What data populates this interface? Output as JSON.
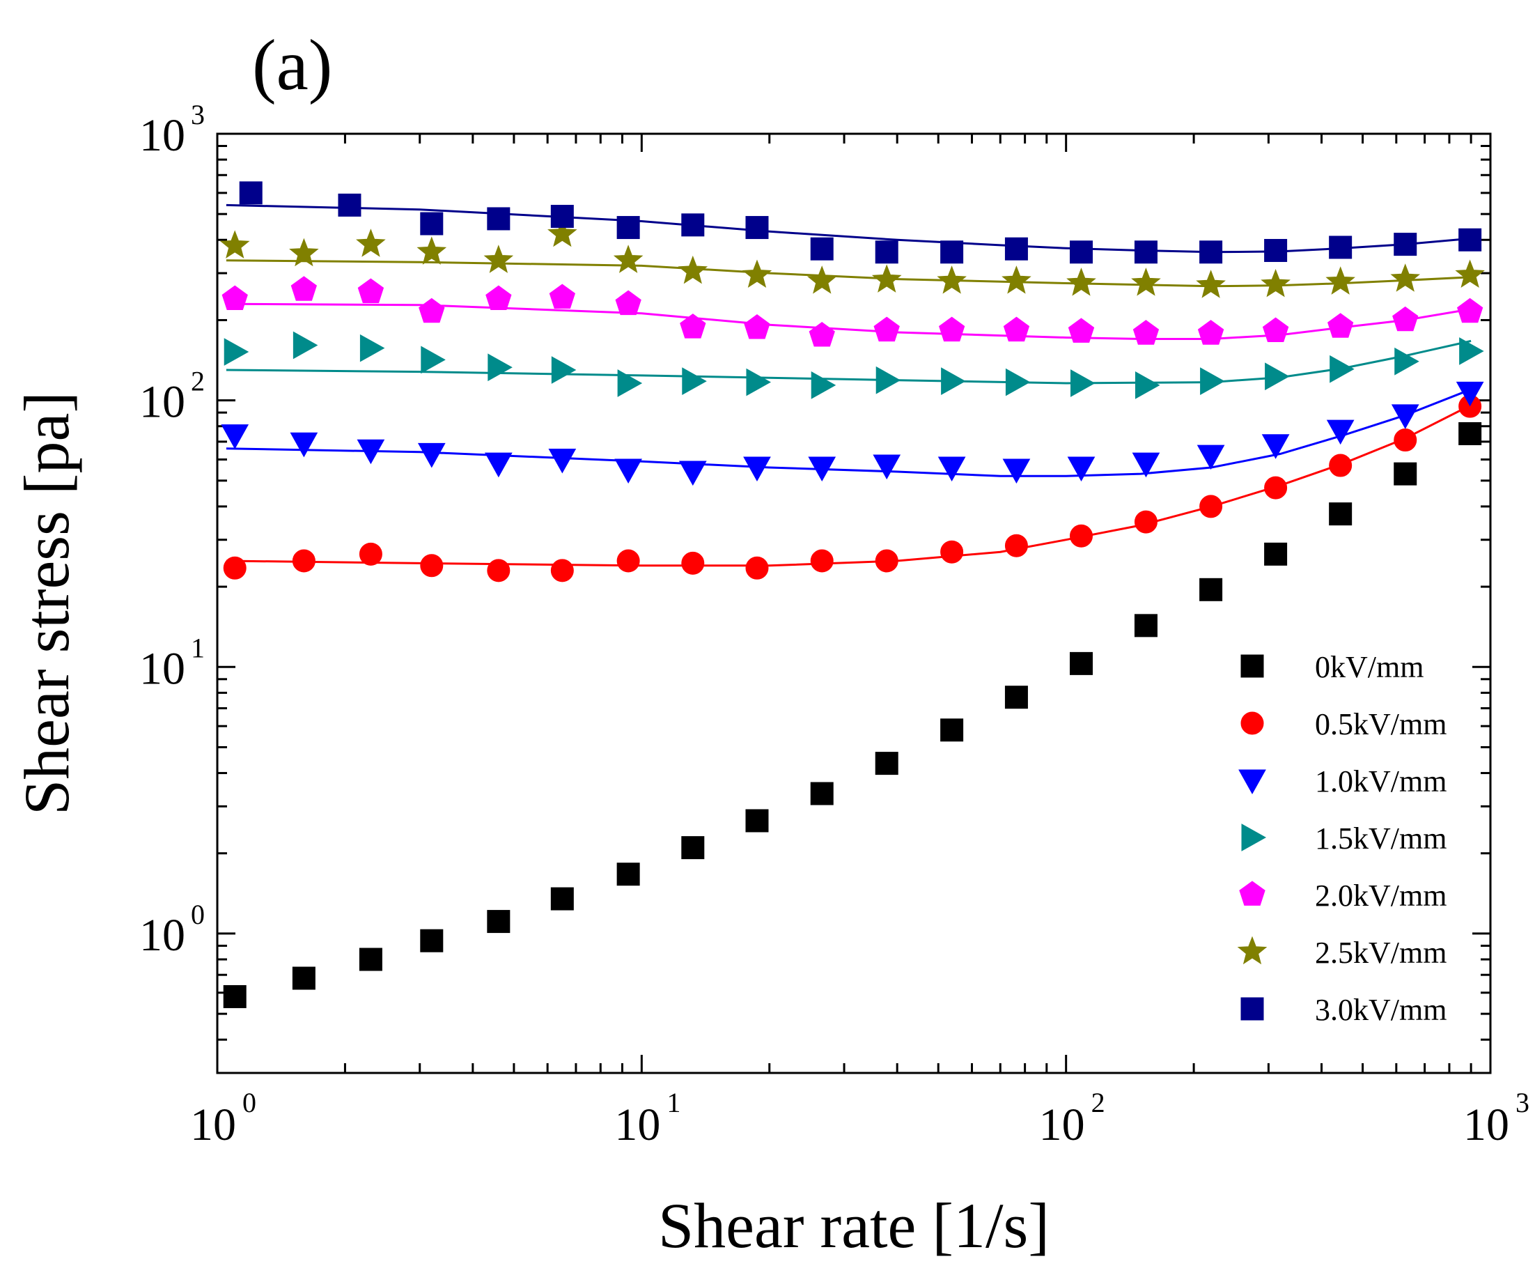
{
  "panel_label": "(a)",
  "colors": {
    "0kV/mm": "#000000",
    "0.5kV/mm": "#ff0000",
    "1.0kV/mm": "#0000ff",
    "1.5kV/mm": "#008b8b",
    "2.0kV/mm": "#ff00ff",
    "2.5kV/mm": "#808000",
    "3.0kV/mm": "#00008b"
  },
  "chart_data": {
    "type": "scatter",
    "xscale": "log",
    "yscale": "log",
    "xlabel": "Shear rate [1/s]",
    "ylabel": "Shear stress [pa]",
    "xlim": [
      1,
      1000
    ],
    "ylim": [
      0.3,
      1000
    ],
    "xticks": [
      {
        "value": 1,
        "base": "10",
        "exp": "0"
      },
      {
        "value": 10,
        "base": "10",
        "exp": "1"
      },
      {
        "value": 100,
        "base": "10",
        "exp": "2"
      },
      {
        "value": 1000,
        "base": "10",
        "exp": "3"
      }
    ],
    "yticks": [
      {
        "value": 1,
        "base": "10",
        "exp": "0"
      },
      {
        "value": 10,
        "base": "10",
        "exp": "1"
      },
      {
        "value": 100,
        "base": "10",
        "exp": "2"
      },
      {
        "value": 1000,
        "base": "10",
        "exp": "3"
      }
    ],
    "legend_position": "bottom-right",
    "series": [
      {
        "name": "0kV/mm",
        "marker": "square",
        "x": [
          1.1,
          1.6,
          2.3,
          3.2,
          4.6,
          6.5,
          9.3,
          13.2,
          18.7,
          26.6,
          37.8,
          53.8,
          76.4,
          108.6,
          154.3,
          219.4,
          311.8,
          443.2,
          630,
          895
        ],
        "y": [
          0.58,
          0.68,
          0.8,
          0.94,
          1.11,
          1.35,
          1.67,
          2.1,
          2.65,
          3.35,
          4.35,
          5.8,
          7.7,
          10.3,
          14.3,
          19.5,
          26.5,
          37.5,
          53,
          75
        ],
        "fit": null
      },
      {
        "name": "0.5kV/mm",
        "marker": "circle",
        "x": [
          1.1,
          1.6,
          2.3,
          3.2,
          4.6,
          6.5,
          9.3,
          13.2,
          18.7,
          26.6,
          37.8,
          53.8,
          76.4,
          108.6,
          154.3,
          219.4,
          311.8,
          443.2,
          630,
          895
        ],
        "y": [
          23.5,
          25,
          26.5,
          24,
          23,
          23,
          25,
          24.5,
          23.5,
          25,
          25,
          27,
          28.5,
          31,
          35,
          40,
          47,
          57,
          71,
          95
        ],
        "fit": {
          "x": [
            1.05,
            3,
            10,
            20,
            40,
            70,
            100,
            150,
            220,
            320,
            450,
            630,
            900
          ],
          "y": [
            25,
            24.5,
            24,
            24,
            25,
            27,
            30,
            34,
            40,
            48,
            58,
            72,
            96
          ]
        }
      },
      {
        "name": "1.0kV/mm",
        "marker": "triangle-down",
        "x": [
          1.1,
          1.6,
          2.3,
          3.2,
          4.6,
          6.5,
          9.3,
          13.2,
          18.7,
          26.6,
          37.8,
          53.8,
          76.4,
          108.6,
          154.3,
          219.4,
          311.8,
          443.2,
          630,
          895
        ],
        "y": [
          74,
          69,
          65,
          63,
          58,
          60,
          55,
          54,
          56,
          56,
          57,
          56,
          55,
          56,
          58,
          62,
          68,
          77,
          88,
          107
        ],
        "fit": {
          "x": [
            1.05,
            3,
            10,
            20,
            40,
            70,
            100,
            150,
            220,
            320,
            450,
            630,
            900
          ],
          "y": [
            66,
            64,
            59,
            56,
            54,
            52,
            52,
            53,
            56,
            63,
            74,
            88,
            110
          ]
        }
      },
      {
        "name": "1.5kV/mm",
        "marker": "triangle-right",
        "x": [
          1.1,
          1.6,
          2.3,
          3.2,
          4.6,
          6.5,
          9.3,
          13.2,
          18.7,
          26.6,
          37.8,
          53.8,
          76.4,
          108.6,
          154.3,
          219.4,
          311.8,
          443.2,
          630,
          895
        ],
        "y": [
          152,
          161,
          157,
          142,
          133,
          130,
          116,
          118,
          117,
          114,
          119,
          118,
          117,
          116,
          114,
          118,
          123,
          131,
          140,
          153
        ],
        "fit": {
          "x": [
            1.05,
            3,
            10,
            30,
            100,
            220,
            320,
            450,
            630,
            900
          ],
          "y": [
            130,
            128,
            124,
            120,
            116,
            117,
            122,
            132,
            147,
            167
          ]
        }
      },
      {
        "name": "2.0kV/mm",
        "marker": "pentagon",
        "x": [
          1.1,
          1.6,
          2.3,
          3.2,
          4.6,
          6.5,
          9.3,
          13.2,
          18.7,
          26.6,
          37.8,
          53.8,
          76.4,
          108.6,
          154.3,
          219.4,
          311.8,
          443.2,
          630,
          895
        ],
        "y": [
          240,
          260,
          255,
          215,
          240,
          243,
          230,
          188,
          187,
          175,
          183,
          183,
          183,
          181,
          178,
          178,
          182,
          189,
          200,
          215
        ],
        "fit": {
          "x": [
            1.05,
            3,
            10,
            20,
            40,
            70,
            100,
            150,
            220,
            320,
            450,
            630,
            900
          ],
          "y": [
            230,
            228,
            212,
            192,
            180,
            175,
            172,
            170,
            170,
            176,
            188,
            200,
            220
          ]
        }
      },
      {
        "name": "2.5kV/mm",
        "marker": "star",
        "x": [
          1.1,
          1.6,
          2.3,
          3.2,
          4.6,
          6.5,
          9.3,
          13.2,
          18.7,
          26.6,
          37.8,
          53.8,
          76.4,
          108.6,
          154.3,
          219.4,
          311.8,
          443.2,
          630,
          895
        ],
        "y": [
          380,
          355,
          385,
          360,
          335,
          420,
          335,
          305,
          295,
          280,
          283,
          280,
          280,
          275,
          275,
          270,
          272,
          278,
          285,
          295
        ],
        "fit": {
          "x": [
            1.05,
            3,
            10,
            20,
            40,
            100,
            220,
            320,
            450,
            630,
            900
          ],
          "y": [
            335,
            330,
            320,
            300,
            285,
            275,
            268,
            270,
            275,
            282,
            290
          ]
        }
      },
      {
        "name": "3.0kV/mm",
        "marker": "square",
        "x": [
          1.2,
          2.05,
          3.2,
          4.6,
          6.5,
          9.3,
          13.2,
          18.7,
          26.6,
          37.8,
          53.8,
          76.4,
          108.6,
          154.3,
          219.4,
          311.8,
          443.2,
          630,
          895
        ],
        "y": [
          600,
          540,
          460,
          480,
          490,
          445,
          455,
          445,
          370,
          360,
          360,
          370,
          360,
          360,
          360,
          365,
          375,
          385,
          400
        ],
        "fit": {
          "x": [
            1.05,
            3,
            10,
            20,
            40,
            70,
            100,
            150,
            220,
            320,
            450,
            630,
            900
          ],
          "y": [
            540,
            520,
            470,
            430,
            400,
            382,
            372,
            365,
            360,
            362,
            372,
            385,
            405
          ]
        }
      }
    ]
  }
}
